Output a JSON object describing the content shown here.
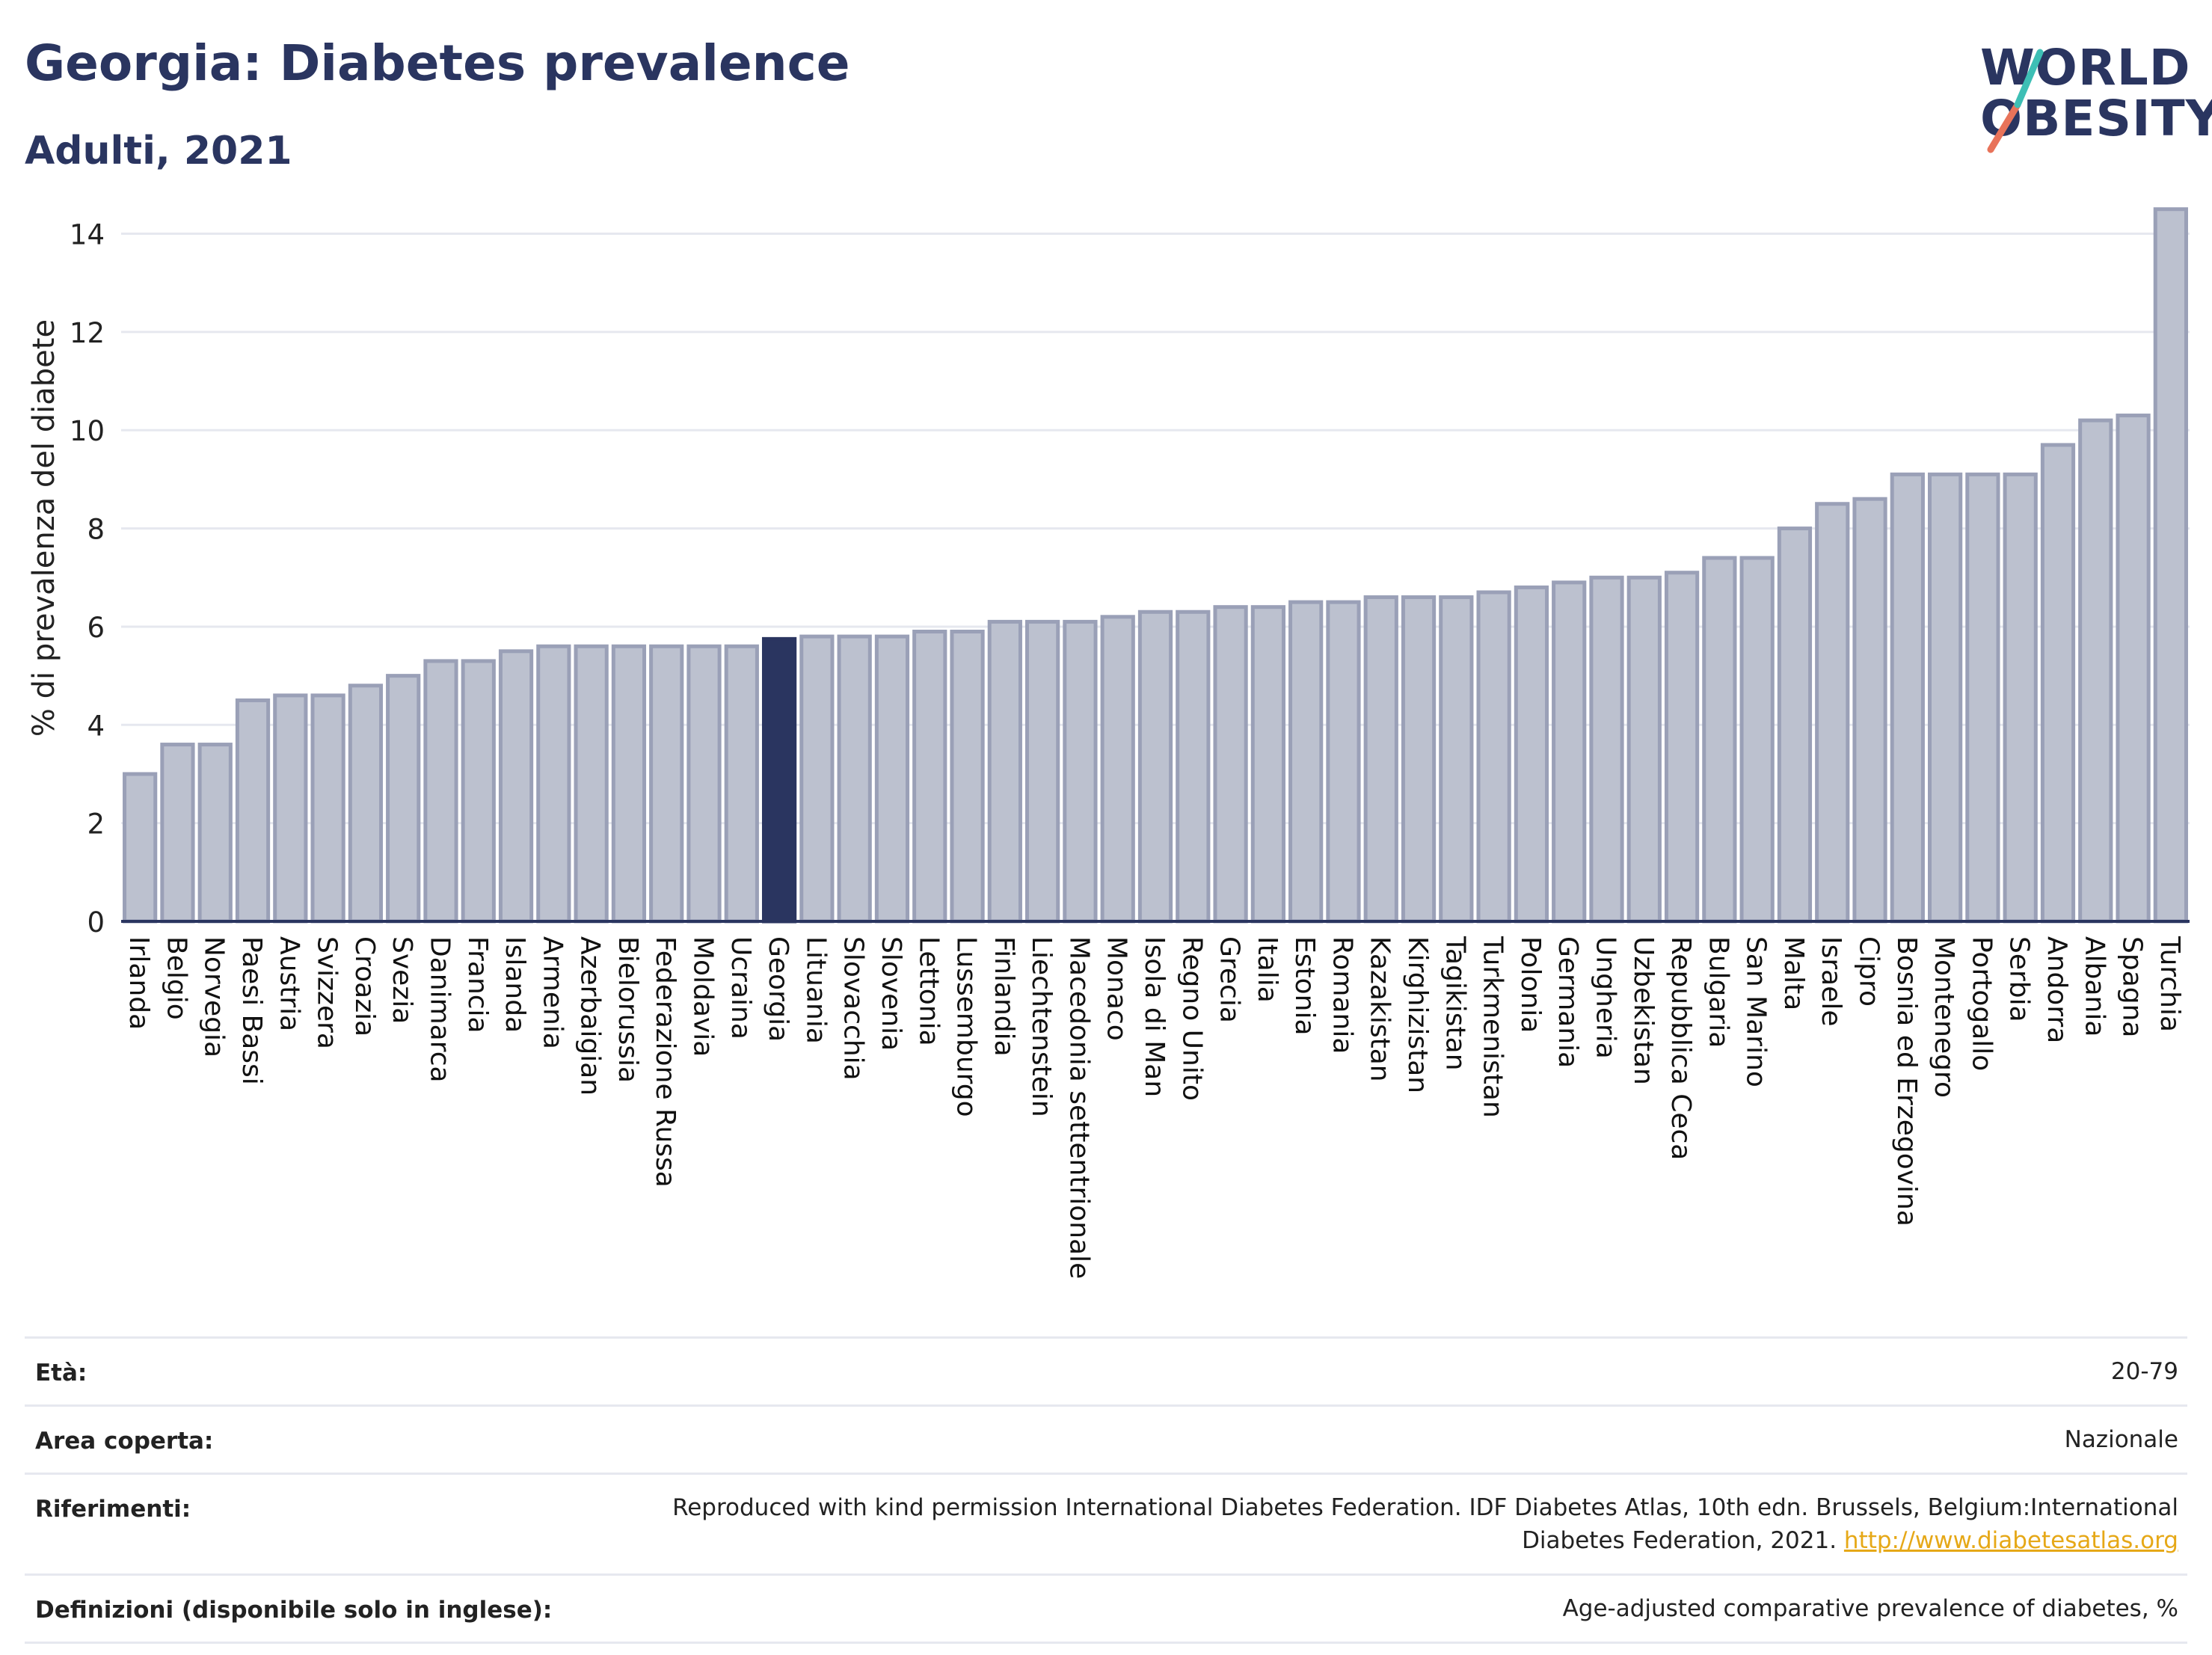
{
  "header": {
    "title": "Georgia: Diabetes prevalence",
    "subtitle": "Adulti, 2021"
  },
  "logo": {
    "line1": "WORLD",
    "line2": "OBESITY",
    "accent_colors": [
      "#3dbfb5",
      "#e8735a"
    ]
  },
  "colors": {
    "bar": "#bcc1cf",
    "bar_edge": "#9aa0b7",
    "highlight": "#2a3560",
    "grid": "#e6e8ef"
  },
  "chart_data": {
    "type": "bar",
    "title": "Georgia: Diabetes prevalence",
    "subtitle": "Adulti, 2021",
    "ylabel": "% di prevalenza del diabete",
    "xlabel": "",
    "ylim": [
      0,
      14.8
    ],
    "yticks": [
      0,
      2,
      4,
      6,
      8,
      10,
      12,
      14
    ],
    "grid": true,
    "highlight": "Georgia",
    "categories": [
      "Irlanda",
      "Belgio",
      "Norvegia",
      "Paesi Bassi",
      "Austria",
      "Svizzera",
      "Croazia",
      "Svezia",
      "Danimarca",
      "Francia",
      "Islanda",
      "Armenia",
      "Azerbaigian",
      "Bielorussia",
      "Federazione Russa",
      "Moldavia",
      "Ucraina",
      "Georgia",
      "Lituania",
      "Slovacchia",
      "Slovenia",
      "Lettonia",
      "Lussemburgo",
      "Finlandia",
      "Liechtenstein",
      "Macedonia settentrionale",
      "Monaco",
      "Isola di Man",
      "Regno Unito",
      "Grecia",
      "Italia",
      "Estonia",
      "Romania",
      "Kazakistan",
      "Kirghizistan",
      "Tagikistan",
      "Turkmenistan",
      "Polonia",
      "Germania",
      "Ungheria",
      "Uzbekistan",
      "Repubblica Ceca",
      "Bulgaria",
      "San Marino",
      "Malta",
      "Israele",
      "Cipro",
      "Bosnia ed Erzegovina",
      "Montenegro",
      "Portogallo",
      "Serbia",
      "Andorra",
      "Albania",
      "Spagna",
      "Turchia"
    ],
    "values": [
      3.0,
      3.6,
      3.6,
      4.5,
      4.6,
      4.6,
      4.8,
      5.0,
      5.3,
      5.3,
      5.5,
      5.6,
      5.6,
      5.6,
      5.6,
      5.6,
      5.6,
      5.75,
      5.8,
      5.8,
      5.8,
      5.9,
      5.9,
      6.1,
      6.1,
      6.1,
      6.2,
      6.3,
      6.3,
      6.4,
      6.4,
      6.5,
      6.5,
      6.6,
      6.6,
      6.6,
      6.7,
      6.8,
      6.9,
      7.0,
      7.0,
      7.1,
      7.4,
      7.4,
      8.0,
      8.5,
      8.6,
      9.1,
      9.1,
      9.1,
      9.1,
      9.7,
      10.2,
      10.3,
      14.5
    ]
  },
  "meta": {
    "age_label": "Età:",
    "age_value": "20-79",
    "area_label": "Area coperta:",
    "area_value": "Nazionale",
    "ref_label": "Riferimenti:",
    "ref_value": "Reproduced with kind permission International Diabetes Federation.  IDF Diabetes Atlas, 10th edn. Brussels, Belgium:International Diabetes Federation, 2021.",
    "ref_link": "http://www.diabetesatlas.org",
    "def_label": "Definizioni (disponibile solo in inglese):",
    "def_value": "Age-adjusted comparative prevalence of diabetes, %"
  }
}
